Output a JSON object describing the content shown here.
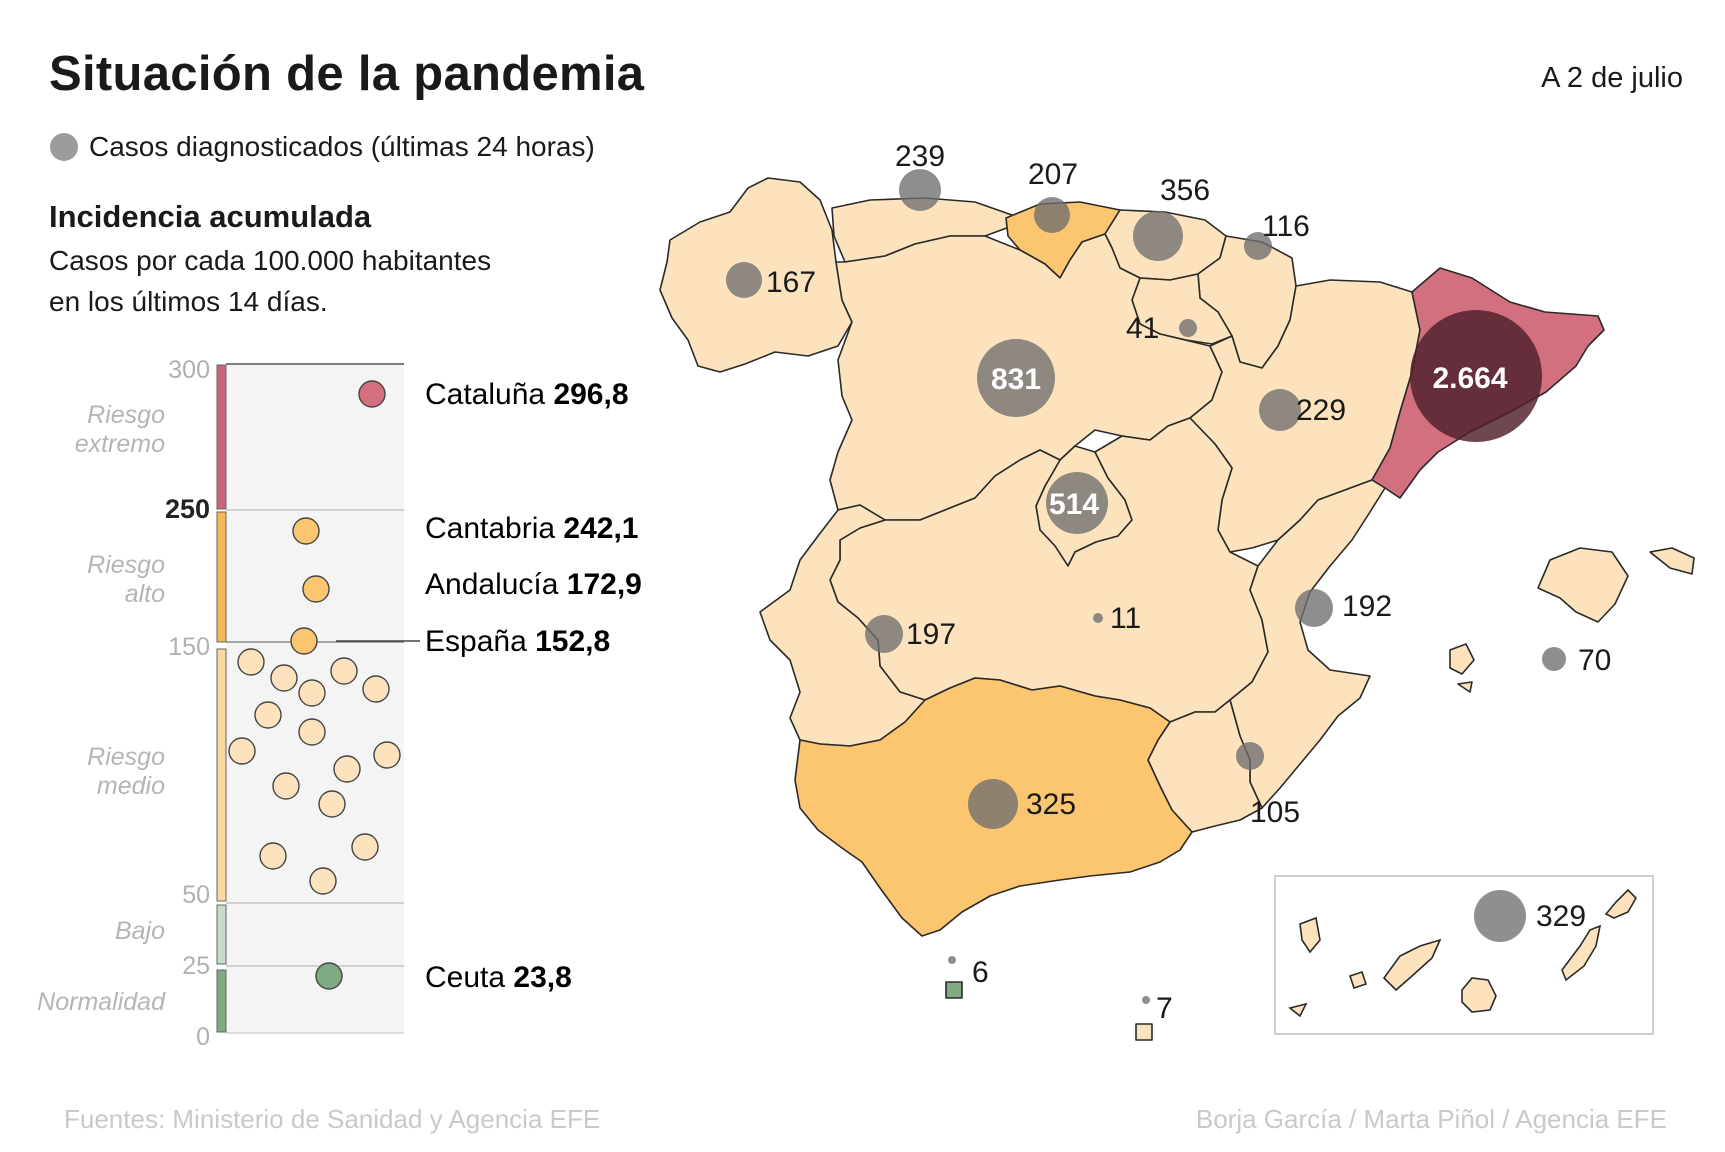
{
  "header": {
    "title": "Situación de la pandemia",
    "date": "A 2 de julio"
  },
  "legend": {
    "cases_label": "Casos diagnosticados (últimas 24 horas)",
    "cases_color": "#9c9c9c"
  },
  "incidence": {
    "title": "Incidencia acumulada",
    "subtitle_line1": "Casos por cada 100.000 habitantes",
    "subtitle_line2": "en los últimos 14 días."
  },
  "scale": {
    "ticks": [
      "300",
      "250",
      "150",
      "50",
      "25",
      "0"
    ],
    "bands": [
      {
        "label_line1": "Riesgo",
        "label_line2": "extremo",
        "from": 250,
        "to": 300,
        "color": "#c9657a"
      },
      {
        "label_line1": "Riesgo",
        "label_line2": "alto",
        "from": 150,
        "to": 250,
        "color": "#f4b857"
      },
      {
        "label_line1": "Riesgo",
        "label_line2": "medio",
        "from": 50,
        "to": 150,
        "color": "#fbd8a2"
      },
      {
        "label_line1": "Bajo",
        "label_line2": "",
        "from": 25,
        "to": 50,
        "color": "#c7dcc7"
      },
      {
        "label_line1": "Normalidad",
        "label_line2": "",
        "from": 0,
        "to": 25,
        "color": "#7faa82"
      }
    ]
  },
  "highlights": [
    {
      "name": "Cataluña",
      "value": "296,8"
    },
    {
      "name": "Cantabria",
      "value": "242,1"
    },
    {
      "name": "Andalucía",
      "value": "172,9"
    },
    {
      "name": "España",
      "value": "152,8"
    },
    {
      "name": "Ceuta",
      "value": "23,8"
    }
  ],
  "regions_cases": [
    {
      "label": "239"
    },
    {
      "label": "207"
    },
    {
      "label": "356"
    },
    {
      "label": "116"
    },
    {
      "label": "167"
    },
    {
      "label": "41"
    },
    {
      "label": "831"
    },
    {
      "label": "2.664"
    },
    {
      "label": "229"
    },
    {
      "label": "514"
    },
    {
      "label": "192"
    },
    {
      "label": "197"
    },
    {
      "label": "11"
    },
    {
      "label": "70"
    },
    {
      "label": "325"
    },
    {
      "label": "105"
    },
    {
      "label": "329"
    },
    {
      "label": "6"
    },
    {
      "label": "7"
    }
  ],
  "colors": {
    "extreme": "#d2707f",
    "high": "#fcc56f",
    "medium": "#fce3bd",
    "normal": "#8fbf92",
    "bubble": "#6e6e6e"
  },
  "footer": {
    "sources": "Fuentes: Ministerio de Sanidad y Agencia EFE",
    "credits": "Borja García / Marta Piñol / Agencia EFE"
  }
}
